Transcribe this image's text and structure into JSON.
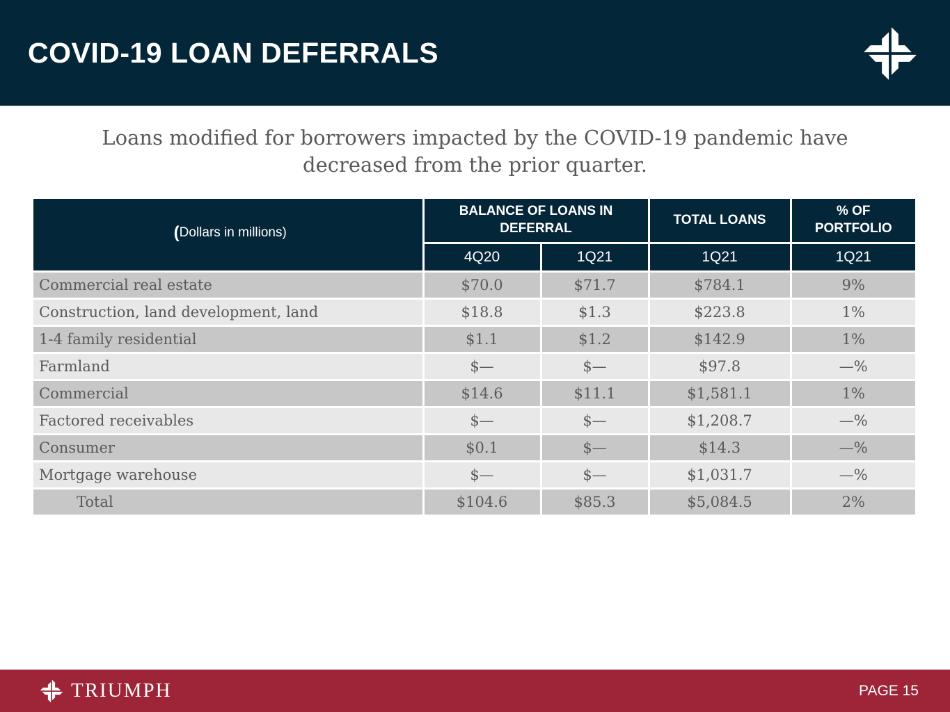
{
  "header": {
    "title": "COVID-19 LOAN DEFERRALS"
  },
  "subtitle": {
    "line1": "Loans modified for borrowers impacted by the COVID-19 pandemic have",
    "line2": "decreased from the prior quarter."
  },
  "table": {
    "note_open": "(",
    "note_rest": "Dollars in millions)",
    "col_groups": [
      {
        "label": "BALANCE OF LOANS IN DEFERRAL",
        "span": 2
      },
      {
        "label": "TOTAL LOANS",
        "span": 1
      },
      {
        "label": "% OF PORTFOLIO",
        "span": 1
      }
    ],
    "sub_headers": [
      "4Q20",
      "1Q21",
      "1Q21",
      "1Q21"
    ],
    "columns": [
      "deferral-4q20",
      "deferral-1q21",
      "total-loans-1q21",
      "pct-portfolio-1q21"
    ],
    "rows": [
      {
        "label": "Commercial real estate",
        "values": [
          "$70.0",
          "$71.7",
          "$784.1",
          "9%"
        ],
        "is_total": false
      },
      {
        "label": "Construction, land development, land",
        "values": [
          "$18.8",
          "$1.3",
          "$223.8",
          "1%"
        ],
        "is_total": false
      },
      {
        "label": "1-4 family residential",
        "values": [
          "$1.1",
          "$1.2",
          "$142.9",
          "1%"
        ],
        "is_total": false
      },
      {
        "label": "Farmland",
        "values": [
          "$—",
          "$—",
          "$97.8",
          "—%"
        ],
        "is_total": false
      },
      {
        "label": "Commercial",
        "values": [
          "$14.6",
          "$11.1",
          "$1,581.1",
          "1%"
        ],
        "is_total": false
      },
      {
        "label": "Factored receivables",
        "values": [
          "$—",
          "$—",
          "$1,208.7",
          "—%"
        ],
        "is_total": false
      },
      {
        "label": "Consumer",
        "values": [
          "$0.1",
          "$—",
          "$14.3",
          "—%"
        ],
        "is_total": false
      },
      {
        "label": "Mortgage warehouse",
        "values": [
          "$—",
          "$—",
          "$1,031.7",
          "—%"
        ],
        "is_total": false
      },
      {
        "label": "Total",
        "values": [
          "$104.6",
          "$85.3",
          "$5,084.5",
          "2%"
        ],
        "is_total": true
      }
    ]
  },
  "footer": {
    "brand": "TRIUMPH",
    "page_label": "PAGE 15"
  },
  "icons": {
    "header_logo": "triumph-cross-icon",
    "footer_logo": "triumph-cross-icon"
  },
  "colors": {
    "navy": "#042639",
    "maroon": "#9e2437",
    "row_dark": "#c7c7c7",
    "row_light": "#e8e8e8",
    "body_text": "#595959",
    "white": "#ffffff"
  }
}
